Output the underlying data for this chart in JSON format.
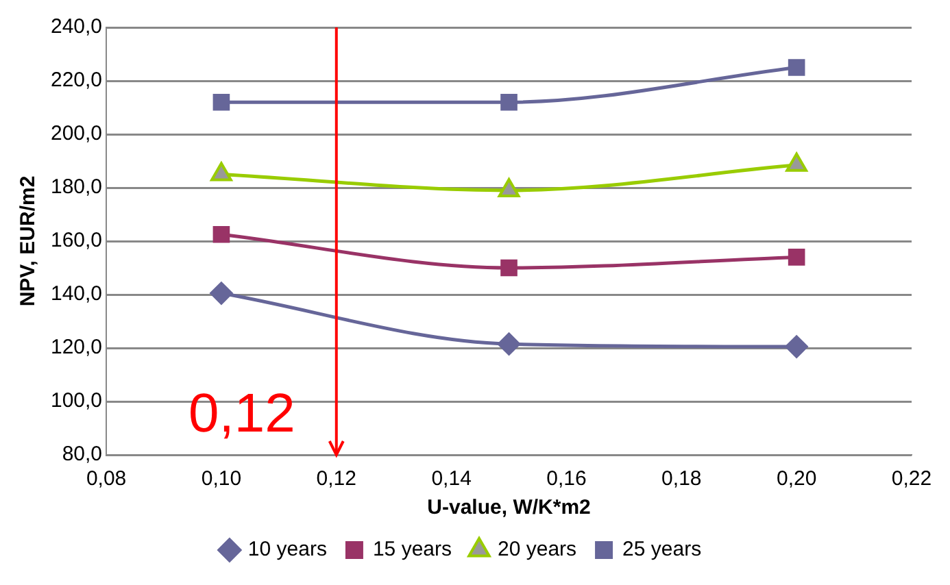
{
  "chart_data": {
    "type": "line",
    "xlabel": "U-value, W/K*m2",
    "ylabel": "NPV, EUR/m2",
    "x": [
      0.1,
      0.15,
      0.2
    ],
    "series": [
      {
        "name": "10 years",
        "color": "#666699",
        "marker": "diamond",
        "values": [
          140.5,
          121.5,
          120.5
        ]
      },
      {
        "name": "15 years",
        "color": "#993366",
        "marker": "square",
        "values": [
          162.5,
          150,
          154
        ]
      },
      {
        "name": "20 years",
        "color": "#99cc00",
        "marker": "triangle",
        "values": [
          185,
          179,
          188.5
        ]
      },
      {
        "name": "25 years",
        "color": "#666699",
        "marker": "square",
        "values": [
          212,
          212,
          225
        ]
      }
    ],
    "xlim": [
      0.08,
      0.22
    ],
    "xticks": [
      {
        "value": 0.08,
        "label": "0,08"
      },
      {
        "value": 0.1,
        "label": "0,10"
      },
      {
        "value": 0.12,
        "label": "0,12"
      },
      {
        "value": 0.14,
        "label": "0,14"
      },
      {
        "value": 0.16,
        "label": "0,16"
      },
      {
        "value": 0.18,
        "label": "0,18"
      },
      {
        "value": 0.2,
        "label": "0,20"
      },
      {
        "value": 0.22,
        "label": "0,22"
      }
    ],
    "ylim": [
      80,
      240
    ],
    "yticks": [
      {
        "value": 80,
        "label": "80,0"
      },
      {
        "value": 100,
        "label": "100,0"
      },
      {
        "value": 120,
        "label": "120,0"
      },
      {
        "value": 140,
        "label": "140,0"
      },
      {
        "value": 160,
        "label": "160,0"
      },
      {
        "value": 180,
        "label": "180,0"
      },
      {
        "value": 200,
        "label": "200,0"
      },
      {
        "value": 220,
        "label": "220,0"
      },
      {
        "value": 240,
        "label": "240,0"
      }
    ],
    "ref_lines": [
      {
        "axis": "x",
        "value": 0.12,
        "label": "0,12",
        "color": "#ff0000"
      }
    ],
    "grid": "y",
    "legend": "bottom",
    "line_style": "solid"
  }
}
